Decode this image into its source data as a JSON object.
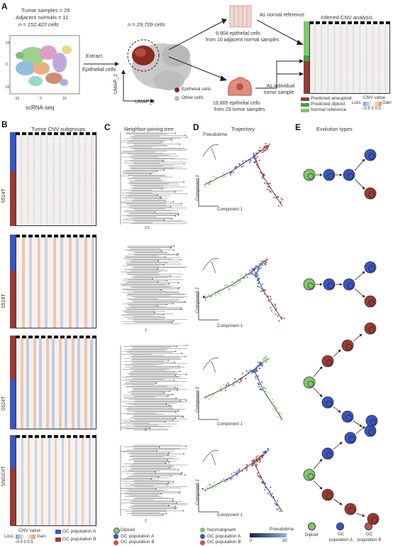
{
  "panels": {
    "A": {
      "letter": "A",
      "stats": [
        "Tumor samples = 29",
        "Adjacent normals = 11",
        "n = 152,423 cells"
      ],
      "scrna_label": "scRNA-seq",
      "extract_label": "Extract",
      "epithelial_label": "Epithelial cells",
      "n_cells": "n = 29,709 cells",
      "umap_x": "UMAP_1",
      "umap_y": "UMAP_2",
      "legend_epi": "Epithelial cells",
      "legend_other": "Other cells",
      "normal_cells_line1": "9,904 epithelial cells",
      "normal_cells_line2": "from 10 adjacent normal samples",
      "tumor_cells_line1": "19,805 epithelial cells",
      "tumor_cells_line2": "from 29 tumor samples",
      "as_normal_reference": "As normal reference",
      "as_individual_line1": "As individual",
      "as_individual_line2": "tumor sample",
      "inferred_cnv": "Inferred CNV analysis",
      "legend_aneuploid": "Predicted aneuploid",
      "legend_diploid": "Predicted diploid",
      "legend_normal_ref": "Normal reference",
      "cnv_value": "CNV value",
      "loss": "Loss",
      "gain": "Gain",
      "scale_ticks": "−0.5  0  0.5"
    },
    "B": {
      "letter": "B",
      "title": "Tumor CNV subgroups",
      "samples": [
        "S514T",
        "S518T",
        "S524T",
        "SNGCIIT"
      ],
      "cnv_value": "CNV value",
      "loss": "Loss",
      "gain": "Gain",
      "scale_ticks": "−0.5  0  0.5",
      "legend_a": "GC population A",
      "legend_b": "GC population B"
    },
    "C": {
      "letter": "C",
      "title": "Neighbor-joining tree",
      "legend_diploid": "Diploid",
      "legend_a": "GC population A",
      "legend_b": "GC population B"
    },
    "D": {
      "letter": "D",
      "title": "Trajectory",
      "pseudotime": "Pseudotime",
      "component1": "Component 1",
      "component2": "Component 2",
      "legend_nonmalignant": "Nonmalignant",
      "legend_a": "GC population A",
      "legend_b": "GC population B",
      "pt_label": "Pseudotime",
      "pt_min": "0",
      "pt_max": "30"
    },
    "E": {
      "letter": "E",
      "title": "Evolution types",
      "legend_diploid": "Diploid",
      "legend_a_line1": "GC",
      "legend_a_line2": "population A",
      "legend_b_line1": "GC",
      "legend_b_line2": "population B"
    }
  },
  "colors": {
    "diploid": "#7dc96a",
    "pop_a": "#3b53c4",
    "pop_b": "#c4544a",
    "dark_red": "#9b3a33",
    "loss": "#6f9fd0",
    "gain": "#e0906a"
  }
}
